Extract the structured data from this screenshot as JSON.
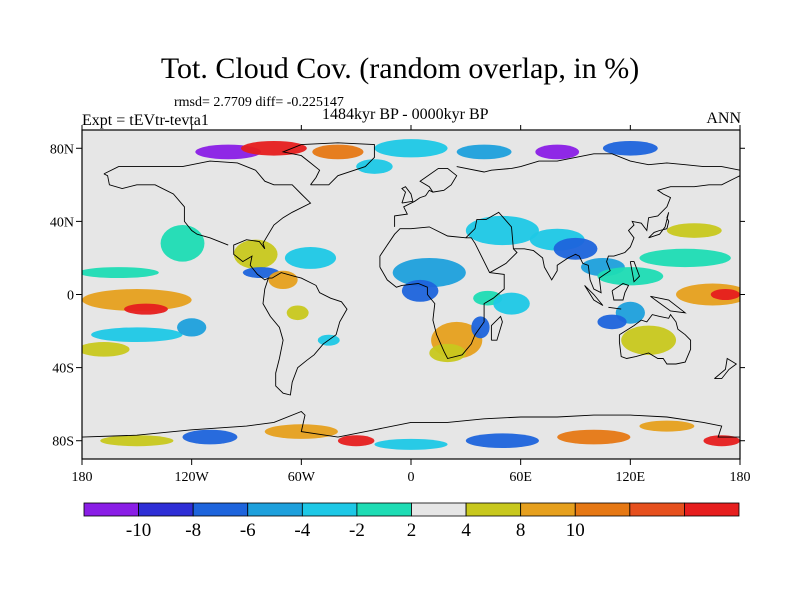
{
  "title": "Tot. Cloud Cov. (random overlap, in %)",
  "stats_text": "rmsd= 2.7709 diff= -0.225147",
  "experiment_text": "Expt = tEVtr-tevta1",
  "period_text": "1484kyr BP - 0000kyr BP",
  "season_text": "ANN",
  "map": {
    "lon_range": [
      -180,
      180
    ],
    "lat_range": [
      -90,
      90
    ],
    "lon_ticks": [
      {
        "value": -180,
        "label": "180"
      },
      {
        "value": -120,
        "label": "120W"
      },
      {
        "value": -60,
        "label": "60W"
      },
      {
        "value": 0,
        "label": "0"
      },
      {
        "value": 60,
        "label": "60E"
      },
      {
        "value": 120,
        "label": "120E"
      },
      {
        "value": 180,
        "label": "180"
      }
    ],
    "lat_ticks": [
      {
        "value": 80,
        "label": "80N"
      },
      {
        "value": 40,
        "label": "40N"
      },
      {
        "value": 0,
        "label": "0"
      },
      {
        "value": -40,
        "label": "40S"
      },
      {
        "value": -80,
        "label": "80S"
      }
    ],
    "background_color": "#e6e6e6"
  },
  "colorbar": {
    "colors": [
      "#8a1ee6",
      "#2e2ed6",
      "#1e64dc",
      "#1ea0dc",
      "#1ec8e6",
      "#1edcb4",
      "#e6e6e6",
      "#c8c81e",
      "#e6a01e",
      "#e67814",
      "#e6501e",
      "#e61e1e"
    ],
    "labels": [
      "-10",
      "-8",
      "-6",
      "-4",
      "-2",
      "2",
      "4",
      "8",
      "10"
    ],
    "label_boundaries": [
      1,
      2,
      3,
      4,
      5,
      6,
      7,
      8,
      9
    ]
  },
  "anomaly_regions": [
    {
      "lon": -150,
      "lat": -3,
      "rlon": 30,
      "rlat": 6,
      "level": 8
    },
    {
      "lon": -145,
      "lat": -8,
      "rlon": 12,
      "rlat": 3,
      "level": 11
    },
    {
      "lon": -160,
      "lat": 12,
      "rlon": 22,
      "rlat": 3,
      "level": 5
    },
    {
      "lon": -150,
      "lat": -22,
      "rlon": 25,
      "rlat": 4,
      "level": 4
    },
    {
      "lon": -168,
      "lat": -30,
      "rlon": 14,
      "rlat": 4,
      "level": 7
    },
    {
      "lon": -120,
      "lat": -18,
      "rlon": 8,
      "rlat": 5,
      "level": 3
    },
    {
      "lon": -125,
      "lat": 28,
      "rlon": 12,
      "rlat": 10,
      "level": 5
    },
    {
      "lon": -85,
      "lat": 22,
      "rlon": 12,
      "rlat": 8,
      "level": 7
    },
    {
      "lon": -82,
      "lat": 12,
      "rlon": 10,
      "rlat": 3,
      "level": 2
    },
    {
      "lon": -70,
      "lat": 8,
      "rlon": 8,
      "rlat": 5,
      "level": 8
    },
    {
      "lon": -55,
      "lat": 20,
      "rlon": 14,
      "rlat": 6,
      "level": 4
    },
    {
      "lon": -62,
      "lat": -10,
      "rlon": 6,
      "rlat": 4,
      "level": 7
    },
    {
      "lon": -45,
      "lat": -25,
      "rlon": 6,
      "rlat": 3,
      "level": 4
    },
    {
      "lon": 10,
      "lat": 12,
      "rlon": 20,
      "rlat": 8,
      "level": 3
    },
    {
      "lon": 5,
      "lat": 2,
      "rlon": 10,
      "rlat": 6,
      "level": 2
    },
    {
      "lon": 25,
      "lat": -25,
      "rlon": 14,
      "rlat": 10,
      "level": 8
    },
    {
      "lon": 20,
      "lat": -32,
      "rlon": 10,
      "rlat": 5,
      "level": 7
    },
    {
      "lon": 38,
      "lat": -18,
      "rlon": 5,
      "rlat": 6,
      "level": 2
    },
    {
      "lon": 42,
      "lat": -2,
      "rlon": 8,
      "rlat": 4,
      "level": 5
    },
    {
      "lon": 55,
      "lat": -5,
      "rlon": 10,
      "rlat": 6,
      "level": 4
    },
    {
      "lon": 50,
      "lat": 35,
      "rlon": 20,
      "rlat": 8,
      "level": 4
    },
    {
      "lon": 80,
      "lat": 30,
      "rlon": 15,
      "rlat": 6,
      "level": 4
    },
    {
      "lon": 90,
      "lat": 25,
      "rlon": 12,
      "rlat": 6,
      "level": 2
    },
    {
      "lon": 105,
      "lat": 15,
      "rlon": 12,
      "rlat": 5,
      "level": 3
    },
    {
      "lon": 120,
      "lat": 10,
      "rlon": 18,
      "rlat": 5,
      "level": 5
    },
    {
      "lon": 165,
      "lat": 0,
      "rlon": 20,
      "rlat": 6,
      "level": 8
    },
    {
      "lon": 172,
      "lat": 0,
      "rlon": 8,
      "rlat": 3,
      "level": 11
    },
    {
      "lon": 150,
      "lat": 20,
      "rlon": 25,
      "rlat": 5,
      "level": 5
    },
    {
      "lon": 155,
      "lat": 35,
      "rlon": 15,
      "rlat": 4,
      "level": 7
    },
    {
      "lon": 120,
      "lat": -10,
      "rlon": 8,
      "rlat": 6,
      "level": 3
    },
    {
      "lon": 130,
      "lat": -25,
      "rlon": 15,
      "rlat": 8,
      "level": 7
    },
    {
      "lon": 110,
      "lat": -15,
      "rlon": 8,
      "rlat": 4,
      "level": 2
    },
    {
      "lon": -100,
      "lat": 78,
      "rlon": 18,
      "rlat": 4,
      "level": 0
    },
    {
      "lon": -75,
      "lat": 80,
      "rlon": 18,
      "rlat": 4,
      "level": 11
    },
    {
      "lon": -40,
      "lat": 78,
      "rlon": 14,
      "rlat": 4,
      "level": 9
    },
    {
      "lon": -20,
      "lat": 70,
      "rlon": 10,
      "rlat": 4,
      "level": 4
    },
    {
      "lon": 0,
      "lat": 80,
      "rlon": 20,
      "rlat": 5,
      "level": 4
    },
    {
      "lon": 40,
      "lat": 78,
      "rlon": 15,
      "rlat": 4,
      "level": 3
    },
    {
      "lon": 80,
      "lat": 78,
      "rlon": 12,
      "rlat": 4,
      "level": 0
    },
    {
      "lon": 120,
      "lat": 80,
      "rlon": 15,
      "rlat": 4,
      "level": 2
    },
    {
      "lon": -150,
      "lat": -80,
      "rlon": 20,
      "rlat": 3,
      "level": 7
    },
    {
      "lon": -110,
      "lat": -78,
      "rlon": 15,
      "rlat": 4,
      "level": 2
    },
    {
      "lon": -60,
      "lat": -75,
      "rlon": 20,
      "rlat": 4,
      "level": 8
    },
    {
      "lon": -30,
      "lat": -80,
      "rlon": 10,
      "rlat": 3,
      "level": 11
    },
    {
      "lon": 0,
      "lat": -82,
      "rlon": 20,
      "rlat": 3,
      "level": 4
    },
    {
      "lon": 50,
      "lat": -80,
      "rlon": 20,
      "rlat": 4,
      "level": 2
    },
    {
      "lon": 100,
      "lat": -78,
      "rlon": 20,
      "rlat": 4,
      "level": 9
    },
    {
      "lon": 140,
      "lat": -72,
      "rlon": 15,
      "rlat": 3,
      "level": 8
    },
    {
      "lon": 170,
      "lat": -80,
      "rlon": 10,
      "rlat": 3,
      "level": 11
    }
  ]
}
